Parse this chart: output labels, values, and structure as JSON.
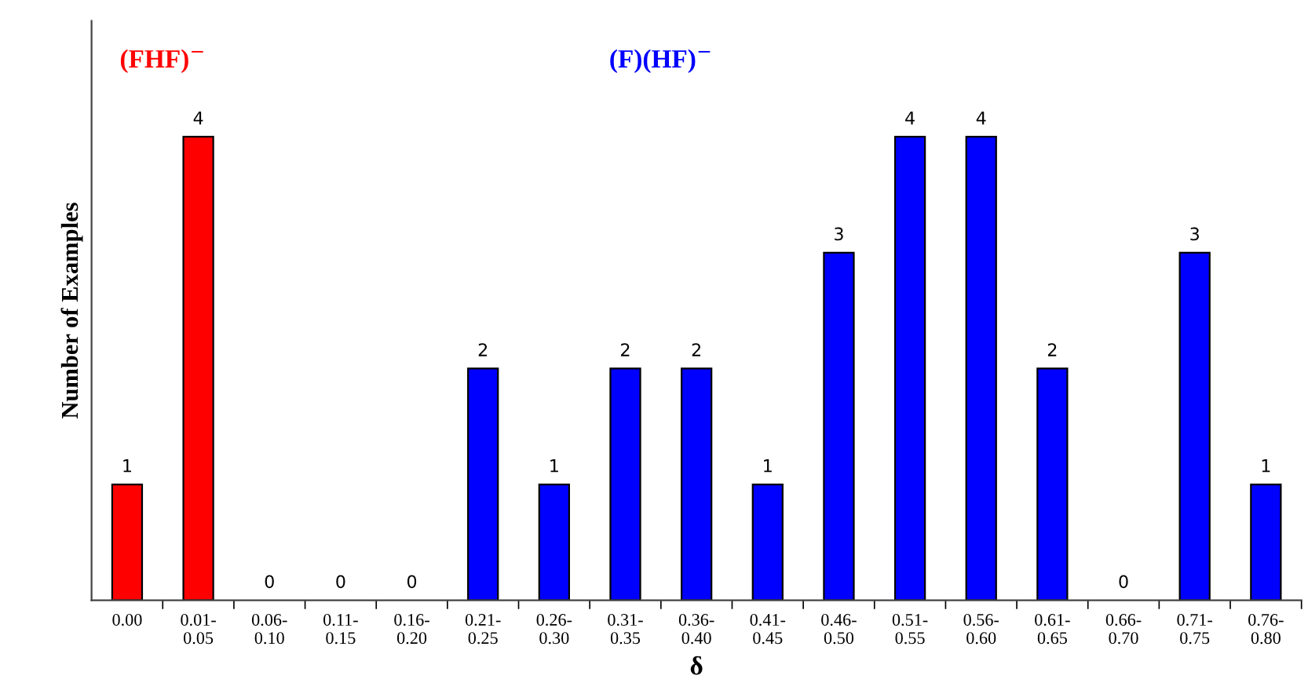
{
  "chart_data": {
    "type": "bar",
    "xlabel": "δ",
    "ylabel": "Number of Examples",
    "categories": [
      "0.00",
      "0.01-\n0.05",
      "0.06-\n0.10",
      "0.11-\n0.15",
      "0.16-\n0.20",
      "0.21-\n0.25",
      "0.26-\n0.30",
      "0.31-\n0.35",
      "0.36-\n0.40",
      "0.41-\n0.45",
      "0.46-\n0.50",
      "0.51-\n0.55",
      "0.56-\n0.60",
      "0.61-\n0.65",
      "0.66-\n0.70",
      "0.71-\n0.75",
      "0.76-\n0.80"
    ],
    "values": [
      1,
      4,
      0,
      0,
      0,
      2,
      1,
      2,
      2,
      1,
      3,
      4,
      4,
      2,
      0,
      3,
      1
    ],
    "colors": [
      "#ff0000",
      "#ff0000",
      "#0000ff",
      "#0000ff",
      "#0000ff",
      "#0000ff",
      "#0000ff",
      "#0000ff",
      "#0000ff",
      "#0000ff",
      "#0000ff",
      "#0000ff",
      "#0000ff",
      "#0000ff",
      "#0000ff",
      "#0000ff",
      "#0000ff"
    ],
    "annotations": [
      "(FHF)$^{−}$",
      "(F)(HF)$^{−}$"
    ],
    "ylim": [
      0,
      5
    ],
    "data_labels": true,
    "tick_labels": "x",
    "grid": false,
    "legend": false
  }
}
